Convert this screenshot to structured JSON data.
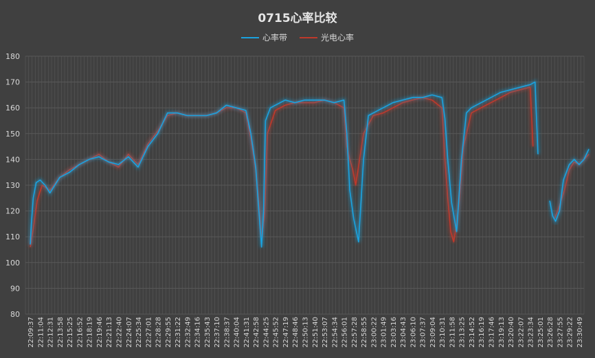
{
  "chart_data": {
    "type": "line",
    "title": "0715心率比较",
    "xlabel": "",
    "ylabel": "",
    "ylim": [
      80,
      180
    ],
    "yticks": [
      80,
      90,
      100,
      110,
      120,
      130,
      140,
      150,
      160,
      170,
      180
    ],
    "grid": true,
    "legend_position": "top-center",
    "colors": {
      "series1": "#1aa3e0",
      "series2": "#c0392b",
      "background": "#404040",
      "grid": "#595959",
      "text": "#d9d9d9"
    },
    "x_tick_labels": [
      "22:09:37",
      "22:11:04",
      "22:12:31",
      "22:13:58",
      "22:15:25",
      "22:16:52",
      "22:18:19",
      "22:19:46",
      "22:21:13",
      "22:22:40",
      "22:24:07",
      "22:25:34",
      "22:27:01",
      "22:28:28",
      "22:29:55",
      "22:31:22",
      "22:32:49",
      "22:34:16",
      "22:35:43",
      "22:37:10",
      "22:38:37",
      "22:40:04",
      "22:41:31",
      "22:42:58",
      "22:44:25",
      "22:45:52",
      "22:47:19",
      "22:48:46",
      "22:50:13",
      "22:51:40",
      "22:53:07",
      "22:54:34",
      "22:56:01",
      "22:57:28",
      "22:58:55",
      "23:00:22",
      "23:01:49",
      "23:03:16",
      "23:04:43",
      "23:06:10",
      "23:07:37",
      "23:09:04",
      "23:10:31",
      "23:11:58",
      "23:13:25",
      "23:14:52",
      "23:16:19",
      "23:17:46",
      "23:19:13",
      "23:20:40",
      "23:22:07",
      "23:23:34",
      "23:25:01",
      "23:26:28",
      "23:27:55",
      "23:29:22",
      "23:30:49"
    ],
    "series": [
      {
        "name": "心率带",
        "x": [
          0,
          0.1,
          0.3,
          0.6,
          1.0,
          1.5,
          2,
          3,
          4,
          5,
          6,
          7,
          8,
          9,
          10,
          11,
          12,
          13,
          14,
          15,
          16,
          17,
          18,
          19,
          20,
          21,
          22,
          22.5,
          23,
          23.3,
          23.6,
          23.8,
          24,
          24.5,
          25,
          26,
          27,
          28,
          29,
          30,
          31,
          32,
          32.3,
          32.6,
          33,
          33.5,
          34,
          34.5,
          35,
          36,
          37,
          38,
          39,
          40,
          41,
          42,
          42.3,
          42.6,
          43,
          43.5,
          44,
          44.5,
          45,
          46,
          47,
          48,
          49,
          50,
          51,
          51.5,
          51.8
        ],
        "y": [
          107,
          115,
          125,
          131,
          132,
          130,
          127,
          133,
          135,
          138,
          140,
          141,
          139,
          138,
          141,
          137,
          145,
          150,
          158,
          158,
          157,
          157,
          157,
          158,
          161,
          160,
          159,
          150,
          137,
          121,
          106,
          120,
          155,
          160,
          161,
          163,
          162,
          163,
          163,
          163,
          162,
          163,
          150,
          128,
          117,
          108,
          140,
          157,
          158,
          160,
          162,
          163,
          164,
          164,
          165,
          164,
          156,
          140,
          123,
          112,
          140,
          158,
          160,
          162,
          164,
          166,
          167,
          168,
          169,
          170,
          142
        ]
      },
      {
        "name": "光电心率",
        "x": [
          0,
          0.3,
          0.7,
          1.2,
          2,
          3,
          4,
          5,
          6,
          7,
          8,
          9,
          10,
          11,
          12,
          13,
          14,
          15,
          16,
          17,
          18,
          19,
          20,
          21,
          22,
          22.5,
          23,
          23.3,
          23.6,
          23.9,
          24.2,
          25,
          26,
          27,
          28,
          29,
          30,
          31,
          32,
          32.3,
          32.6,
          32.9,
          33.2,
          33.6,
          34,
          35,
          36,
          37,
          38,
          39,
          40,
          41,
          42,
          42.3,
          42.6,
          42.9,
          43.2,
          43.5,
          43.8,
          44.2,
          45,
          46,
          47,
          48,
          49,
          50,
          51,
          51.3
        ],
        "y": [
          106,
          113,
          124,
          130,
          128,
          133,
          136,
          138,
          140,
          142,
          139,
          137,
          142,
          138,
          146,
          151,
          157,
          158,
          157,
          157,
          157,
          158,
          160,
          160,
          158,
          148,
          136,
          124,
          110,
          118,
          150,
          159,
          161,
          162,
          162,
          162,
          163,
          162,
          160,
          145,
          140,
          136,
          130,
          140,
          150,
          157,
          158,
          160,
          162,
          163,
          164,
          163,
          160,
          140,
          125,
          112,
          108,
          115,
          125,
          145,
          158,
          160,
          162,
          164,
          166,
          167,
          168,
          145
        ]
      },
      {
        "name": "",
        "x": [
          53,
          53.3,
          53.6,
          54,
          54.4,
          55,
          55.5,
          56,
          56.5,
          57
        ],
        "y": [
          124,
          118,
          116,
          120,
          132,
          138,
          140,
          138,
          140,
          144
        ],
        "style_of": "心率带"
      },
      {
        "name": "",
        "x": [
          53.5,
          54,
          54.5,
          55,
          55.5,
          56,
          56.5,
          57
        ],
        "y": [
          117,
          122,
          128,
          136,
          139,
          138,
          140,
          142
        ],
        "style_of": "光电心率"
      }
    ]
  }
}
